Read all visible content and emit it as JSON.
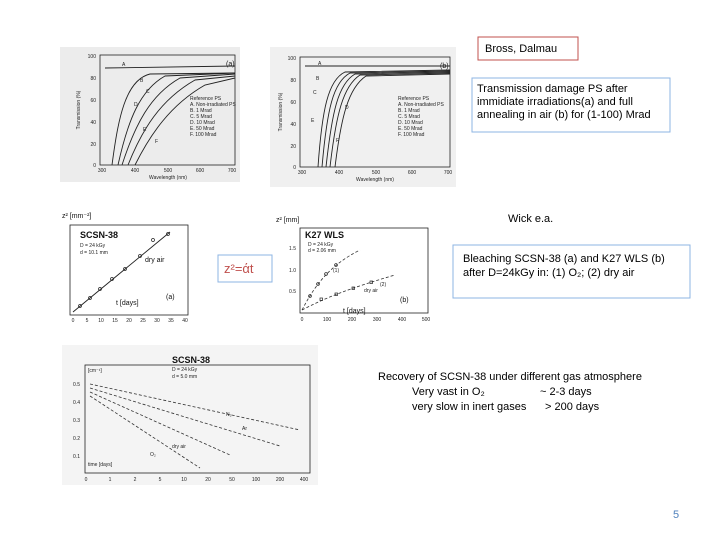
{
  "header": {
    "author_box": "Bross, Dalmau",
    "caption": [
      "Transmission damage PS after",
      "immidiate irradiations(a) and full",
      "annealing in air (b) for (1-100) Mrad"
    ]
  },
  "figure_a": {
    "panel": "(a)",
    "y_label": "Transmission (%)",
    "x_label": "Wavelength (nm)",
    "y_ticks": [
      "100",
      "80",
      "60",
      "40",
      "20",
      "0"
    ],
    "x_ticks": [
      "300",
      "400",
      "500",
      "600",
      "700"
    ],
    "curve_labels": [
      "A",
      "B",
      "C",
      "D",
      "E",
      "F"
    ],
    "legend": [
      "Reference PS",
      "A. Non-irradiated PS",
      "B. 1 Mrad",
      "C. 5 Mrad",
      "D. 10 Mrad",
      "E. 50 Mrad",
      "F. 100 Mrad"
    ]
  },
  "figure_b": {
    "panel": "(b)",
    "y_label": "Transmission (%)",
    "x_label": "Wavelength (nm)",
    "y_ticks": [
      "100",
      "80",
      "60",
      "40",
      "20",
      "0"
    ],
    "x_ticks": [
      "300",
      "400",
      "500",
      "600",
      "700"
    ],
    "curve_labels": [
      "A",
      "B",
      "C",
      "D",
      "E",
      "F"
    ],
    "legend": [
      "Reference PS",
      "A. Non-irradiated PS",
      "B. 1 Mrad",
      "C. 5 Mrad",
      "D. 10 Mrad",
      "E. 50 Mrad",
      "F. 100 Mrad"
    ]
  },
  "middle": {
    "source": "Wick e.a.",
    "formula": "z²=άt",
    "caption": [
      "Bleaching SCSN-38 (a)  and  K27 WLS (b)",
      "after D=24kGy in: (1) O₂; (2) dry air"
    ]
  },
  "figure_c": {
    "y_label": "z² [mm⁻²]",
    "title": "SCSN-38",
    "params": [
      "D = 24 kGy",
      "d = 10.1 mm"
    ],
    "curve_label": "dry air",
    "x_label": "t [days]",
    "panel": "(a)",
    "x_ticks": [
      "0",
      "5",
      "10",
      "15",
      "20",
      "25",
      "30",
      "35",
      "40"
    ]
  },
  "figure_d": {
    "y_label": "z² [mm]",
    "title": "K27 WLS",
    "params": [
      "D = 24 kGy",
      "d = 2.06 mm"
    ],
    "curve_labels": [
      "(1)",
      "(2)",
      "dry air"
    ],
    "x_label": "t [days]",
    "panel": "(b)",
    "y_ticks": [
      "1.5",
      "1.0",
      "0.5"
    ],
    "x_ticks": [
      "0",
      "100",
      "200",
      "300",
      "400",
      "500"
    ]
  },
  "figure_e": {
    "title": "SCSN-38",
    "params": [
      "D = 24 kGy",
      "d = 5.0 mm"
    ],
    "y_label": "[cm⁻¹]",
    "curve_labels": [
      "N₂",
      "Ar",
      "dry air",
      "O₂"
    ],
    "x_label": "time [days]",
    "y_ticks": [
      "0.5",
      "0.4",
      "0.3",
      "0.2",
      "0.1"
    ],
    "x_ticks": [
      "0",
      "1",
      "2",
      "5",
      "10",
      "20",
      "50",
      "100",
      "200",
      "400"
    ]
  },
  "recovery": {
    "title": "Recovery of SCSN-38 under different gas atmosphere",
    "fast": "Very vast in O₂",
    "fast_time": "~ 2-3 days",
    "slow": "very slow in inert gases",
    "slow_time": "> 200 days"
  },
  "page_number": "5"
}
